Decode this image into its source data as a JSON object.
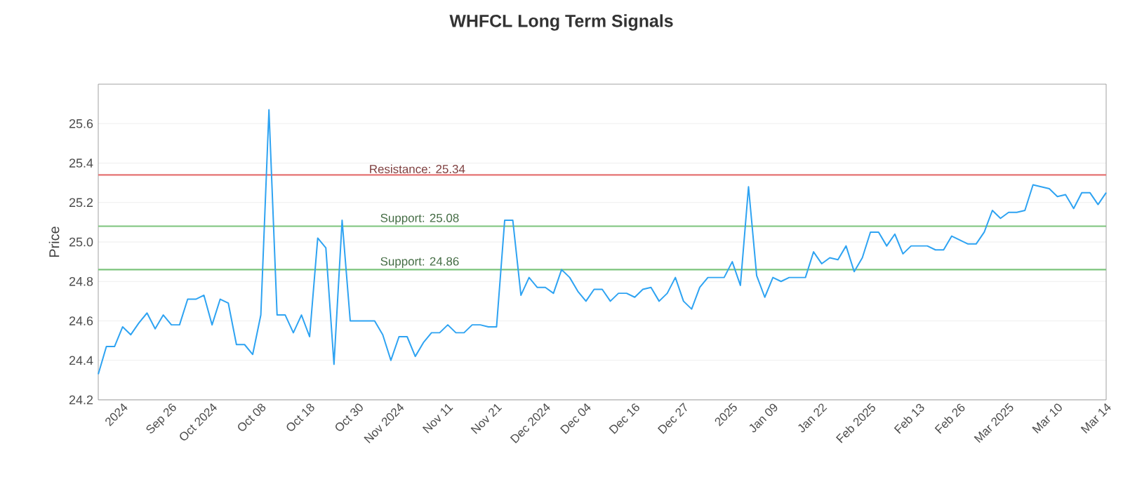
{
  "chart_data": {
    "type": "line",
    "title": "WHFCL Long Term Signals",
    "ylabel": "Price",
    "categories": [
      null,
      null,
      null,
      "2024",
      null,
      null,
      null,
      null,
      null,
      "Sep 26",
      null,
      null,
      null,
      null,
      "Oct 2024",
      null,
      null,
      null,
      null,
      null,
      "Oct 08",
      null,
      null,
      null,
      null,
      null,
      "Oct 18",
      null,
      null,
      null,
      null,
      null,
      "Oct 30",
      null,
      null,
      null,
      null,
      "Nov 2024",
      null,
      null,
      null,
      null,
      null,
      "Nov 11",
      null,
      null,
      null,
      null,
      null,
      "Nov 21",
      null,
      null,
      null,
      null,
      null,
      "Dec 2024",
      null,
      null,
      null,
      null,
      "Dec 04",
      null,
      null,
      null,
      null,
      null,
      "Dec 16",
      null,
      null,
      null,
      null,
      null,
      "Dec 27",
      null,
      null,
      null,
      null,
      null,
      "2025",
      null,
      null,
      null,
      null,
      "Jan 09",
      null,
      null,
      null,
      null,
      null,
      "Jan 22",
      null,
      null,
      null,
      null,
      null,
      "Feb 2025",
      null,
      null,
      null,
      null,
      null,
      "Feb 13",
      null,
      null,
      null,
      null,
      "Feb 26",
      null,
      null,
      null,
      null,
      null,
      "Mar 2025",
      null,
      null,
      null,
      null,
      null,
      "Mar 10",
      null,
      null,
      null,
      null,
      null,
      "Mar 14"
    ],
    "values": [
      24.33,
      24.47,
      24.47,
      24.57,
      24.53,
      24.59,
      24.64,
      24.56,
      24.63,
      24.58,
      24.58,
      24.71,
      24.71,
      24.73,
      24.58,
      24.71,
      24.69,
      24.48,
      24.48,
      24.43,
      24.63,
      25.67,
      24.63,
      24.63,
      24.54,
      24.63,
      24.52,
      25.02,
      24.97,
      24.38,
      25.11,
      24.6,
      24.6,
      24.6,
      24.6,
      24.53,
      24.4,
      24.52,
      24.52,
      24.42,
      24.49,
      24.54,
      24.54,
      24.58,
      24.54,
      24.54,
      24.58,
      24.58,
      24.57,
      24.57,
      25.11,
      25.11,
      24.73,
      24.82,
      24.77,
      24.77,
      24.74,
      24.86,
      24.82,
      24.75,
      24.7,
      24.76,
      24.76,
      24.7,
      24.74,
      24.74,
      24.72,
      24.76,
      24.77,
      24.7,
      24.74,
      24.82,
      24.7,
      24.66,
      24.77,
      24.82,
      24.82,
      24.82,
      24.9,
      24.78,
      25.28,
      24.83,
      24.72,
      24.82,
      24.8,
      24.82,
      24.82,
      24.82,
      24.95,
      24.89,
      24.92,
      24.91,
      24.98,
      24.85,
      24.92,
      25.05,
      25.05,
      24.98,
      25.04,
      24.94,
      24.98,
      24.98,
      24.98,
      24.96,
      24.96,
      25.03,
      25.01,
      24.99,
      24.99,
      25.05,
      25.16,
      25.12,
      25.15,
      25.15,
      25.16,
      25.29,
      25.28,
      25.27,
      25.23,
      25.24,
      25.17,
      25.25,
      25.25,
      25.19,
      25.25
    ],
    "color": "#2ea3f2",
    "ylim": [
      24.2,
      25.8
    ],
    "yticks": [
      24.2,
      24.4,
      24.6,
      24.8,
      {
        "value": 25.0,
        "label": "25.0"
      },
      25.2,
      25.4,
      25.6
    ],
    "grid": "y",
    "ref_lines": [
      {
        "axis": "y",
        "value": 25.34,
        "label": "Resistance: 25.34",
        "color": "#e57373"
      },
      {
        "axis": "y",
        "value": 25.08,
        "label": "Support: 25.08",
        "color": "#7cc47c"
      },
      {
        "axis": "y",
        "value": 24.86,
        "label": "Support: 24.86",
        "color": "#7cc47c"
      }
    ]
  }
}
